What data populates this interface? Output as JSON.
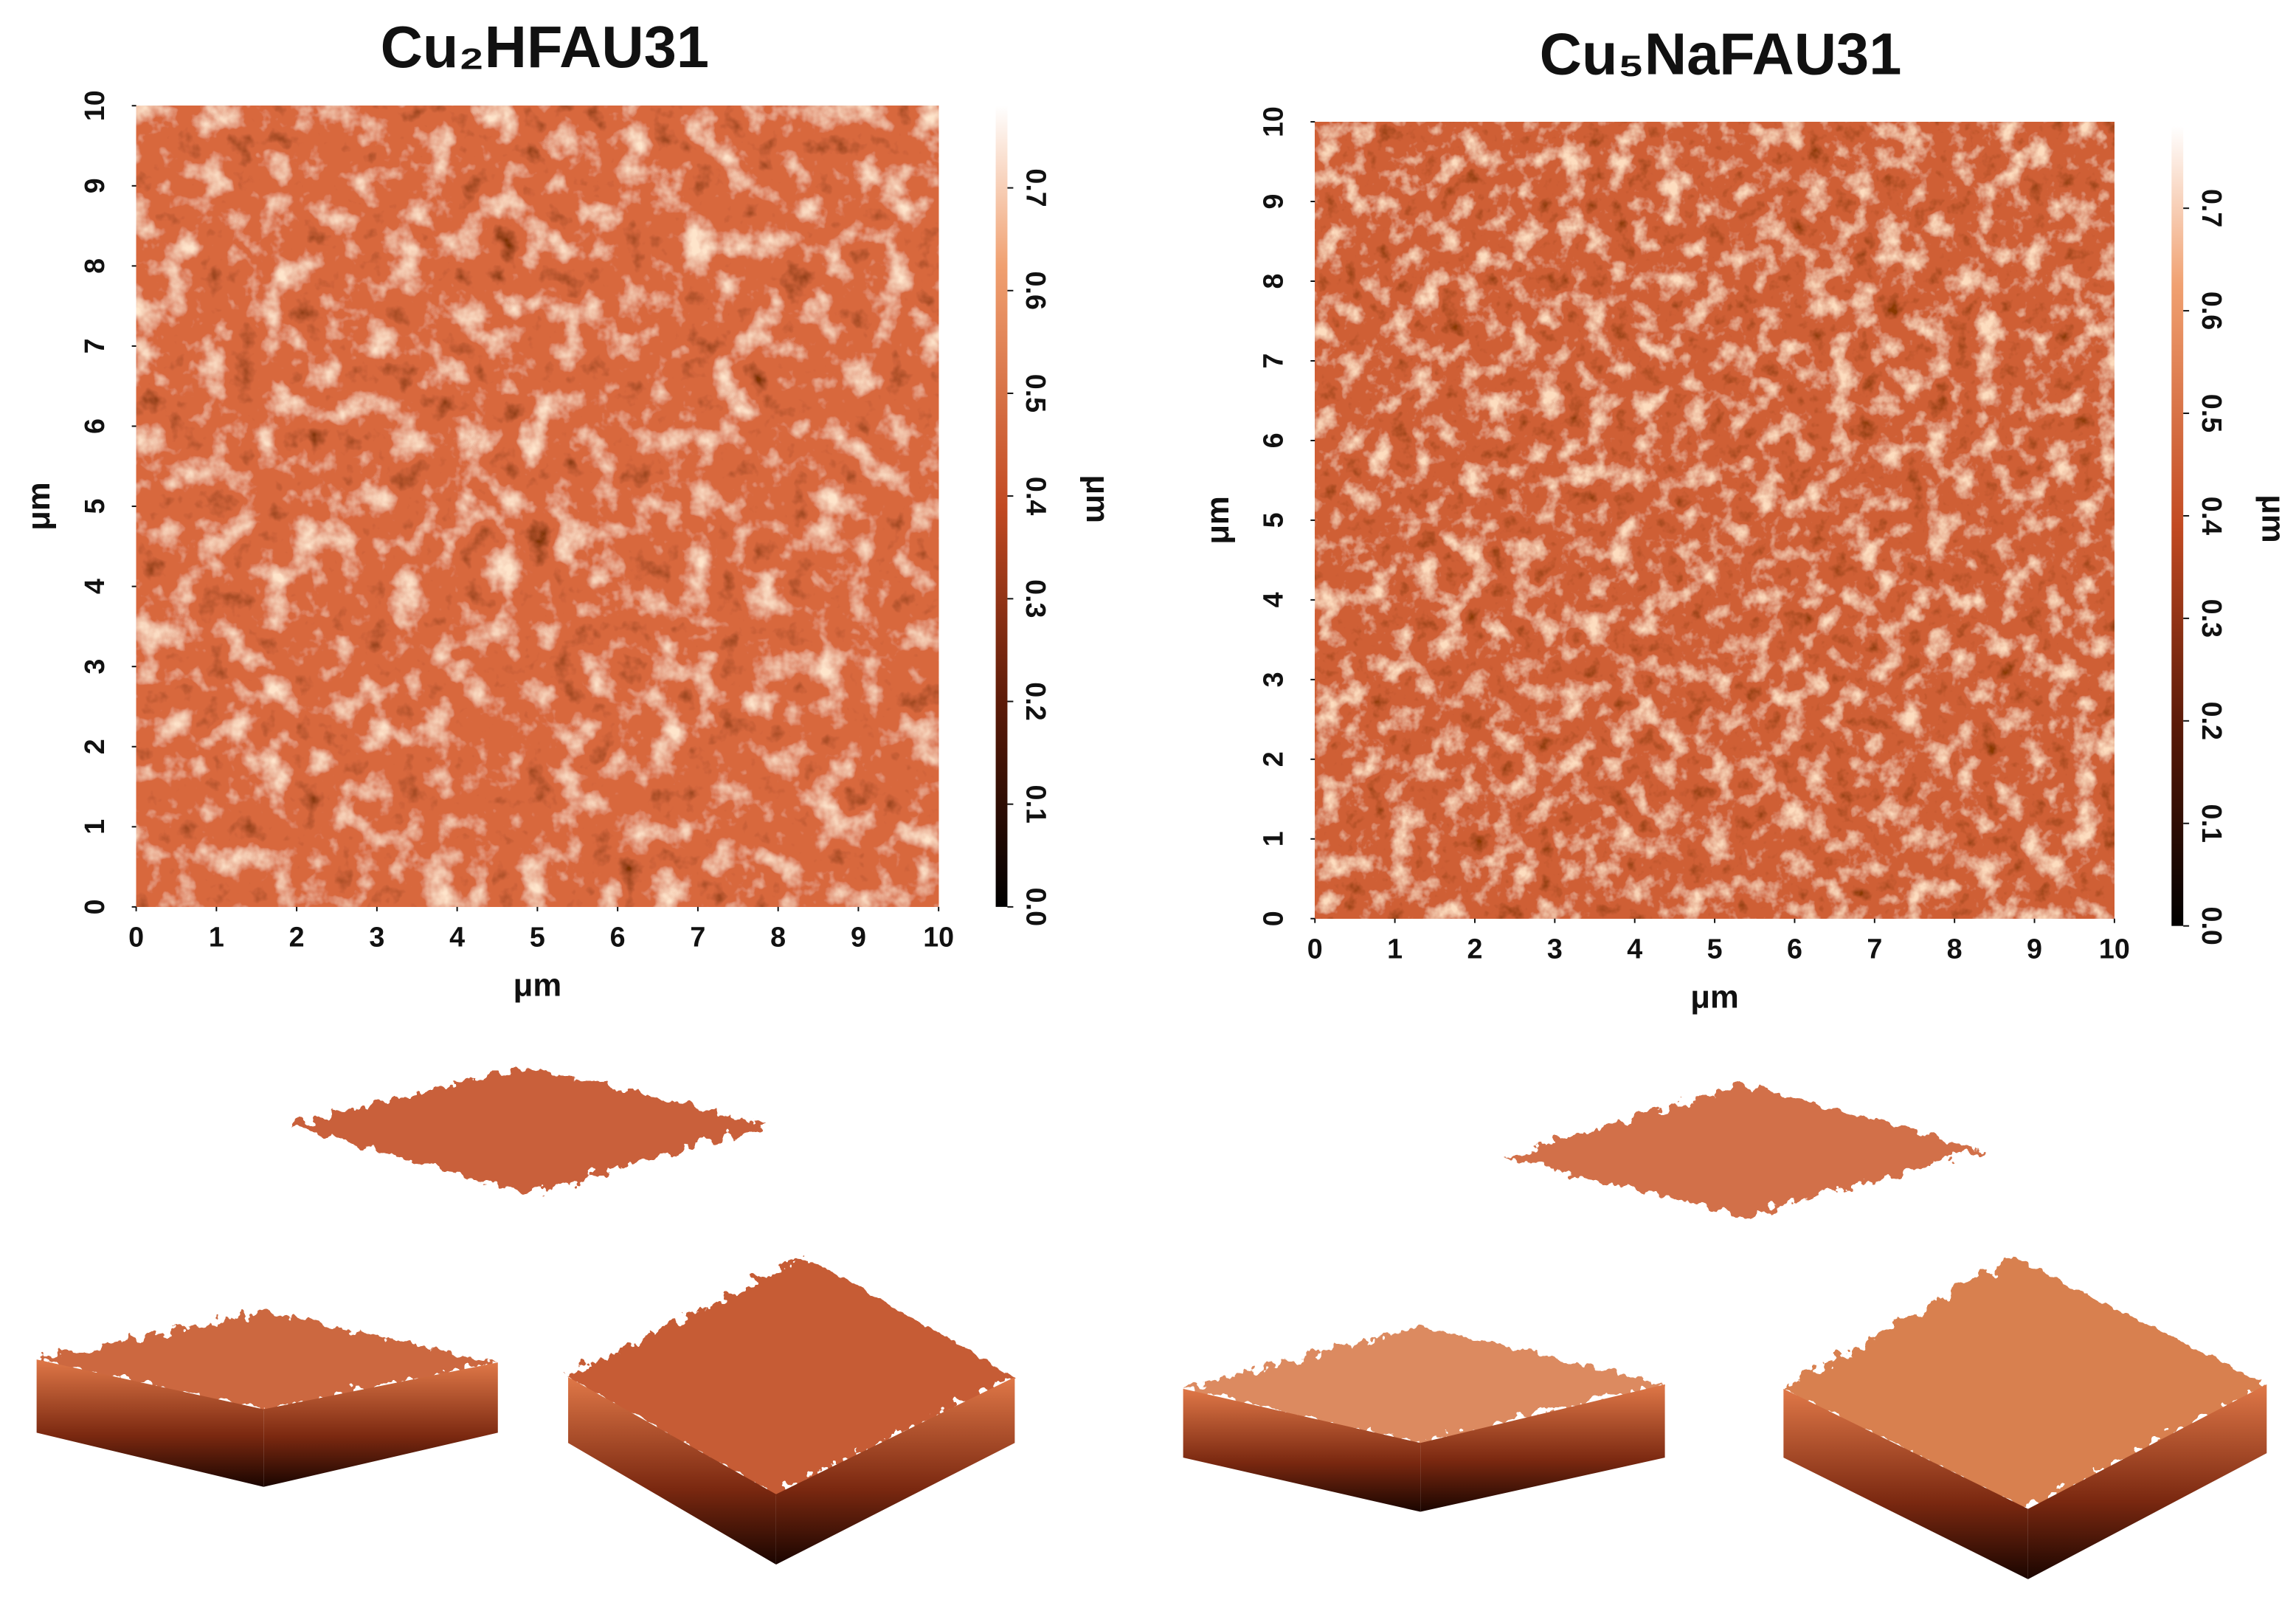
{
  "chart_data": [
    {
      "type": "image",
      "title": "Cu₂HFAU31",
      "xlabel": "μm",
      "ylabel": "μm",
      "colorbar_label": "μm",
      "xlim": [
        0,
        10
      ],
      "ylim": [
        0,
        10
      ],
      "xticks": [
        0,
        1,
        2,
        3,
        4,
        5,
        6,
        7,
        8,
        9,
        10
      ],
      "yticks": [
        0,
        1,
        2,
        3,
        4,
        5,
        6,
        7,
        8,
        9,
        10
      ],
      "zlim": [
        0,
        0.78
      ],
      "zticks": [
        {
          "value": 0,
          "label": "0.0"
        },
        0.1,
        0.2,
        0.3,
        0.4,
        0.5,
        0.6,
        0.7
      ]
    },
    {
      "type": "image",
      "title": "Cu₅NaFAU31",
      "xlabel": "μm",
      "ylabel": "μm",
      "colorbar_label": "μm",
      "xlim": [
        0,
        10
      ],
      "ylim": [
        0,
        10
      ],
      "xticks": [
        0,
        1,
        2,
        3,
        4,
        5,
        6,
        7,
        8,
        9,
        10
      ],
      "yticks": [
        0,
        1,
        2,
        3,
        4,
        5,
        6,
        7,
        8,
        9,
        10
      ],
      "zlim": [
        0,
        0.78
      ],
      "zticks": [
        {
          "value": 0,
          "label": "0.0"
        },
        0.1,
        0.2,
        0.3,
        0.4,
        0.5,
        0.6,
        0.7
      ]
    }
  ]
}
